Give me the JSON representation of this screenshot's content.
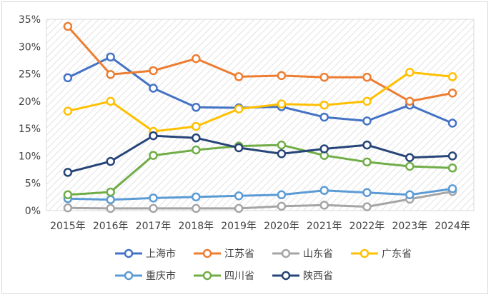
{
  "chart_data": {
    "type": "line",
    "title": "",
    "xlabel": "",
    "ylabel": "",
    "categories": [
      "2015年",
      "2016年",
      "2017年",
      "2018年",
      "2019年",
      "2020年",
      "2021年",
      "2022年",
      "2023年",
      "2024年"
    ],
    "ylim": [
      0,
      35
    ],
    "y_ticks": [
      0,
      5,
      10,
      15,
      20,
      25,
      30,
      35
    ],
    "y_tick_labels": [
      "0%",
      "5%",
      "10%",
      "15%",
      "20%",
      "25%",
      "30%",
      "35%"
    ],
    "grid": false,
    "plot_background": "hatched",
    "legend_position": "bottom",
    "series": [
      {
        "name": "上海市",
        "color": "#4472c4",
        "values": [
          24.3,
          28.1,
          22.4,
          18.9,
          18.8,
          19.0,
          17.1,
          16.4,
          19.3,
          16.0
        ]
      },
      {
        "name": "江苏省",
        "color": "#ed7d31",
        "values": [
          33.7,
          24.9,
          25.6,
          27.8,
          24.5,
          24.7,
          24.4,
          24.4,
          20.0,
          21.5
        ]
      },
      {
        "name": "山东省",
        "color": "#a5a5a5",
        "values": [
          0.5,
          0.4,
          0.4,
          0.4,
          0.4,
          0.8,
          1.0,
          0.7,
          2.1,
          3.5
        ]
      },
      {
        "name": "广东省",
        "color": "#ffc000",
        "values": [
          18.2,
          20.0,
          14.5,
          15.4,
          18.6,
          19.5,
          19.3,
          20.0,
          25.3,
          24.5
        ]
      },
      {
        "name": "重庆市",
        "color": "#5b9bd5",
        "values": [
          2.2,
          2.0,
          2.3,
          2.5,
          2.7,
          2.9,
          3.7,
          3.3,
          2.9,
          4.0
        ]
      },
      {
        "name": "四川省",
        "color": "#70ad47",
        "values": [
          2.9,
          3.4,
          10.1,
          11.1,
          11.8,
          12.0,
          10.1,
          8.9,
          8.1,
          7.8
        ]
      },
      {
        "name": "陕西省",
        "color": "#264478",
        "values": [
          7.0,
          9.0,
          13.7,
          13.3,
          11.5,
          10.4,
          11.3,
          12.0,
          9.7,
          10.0
        ]
      }
    ]
  }
}
